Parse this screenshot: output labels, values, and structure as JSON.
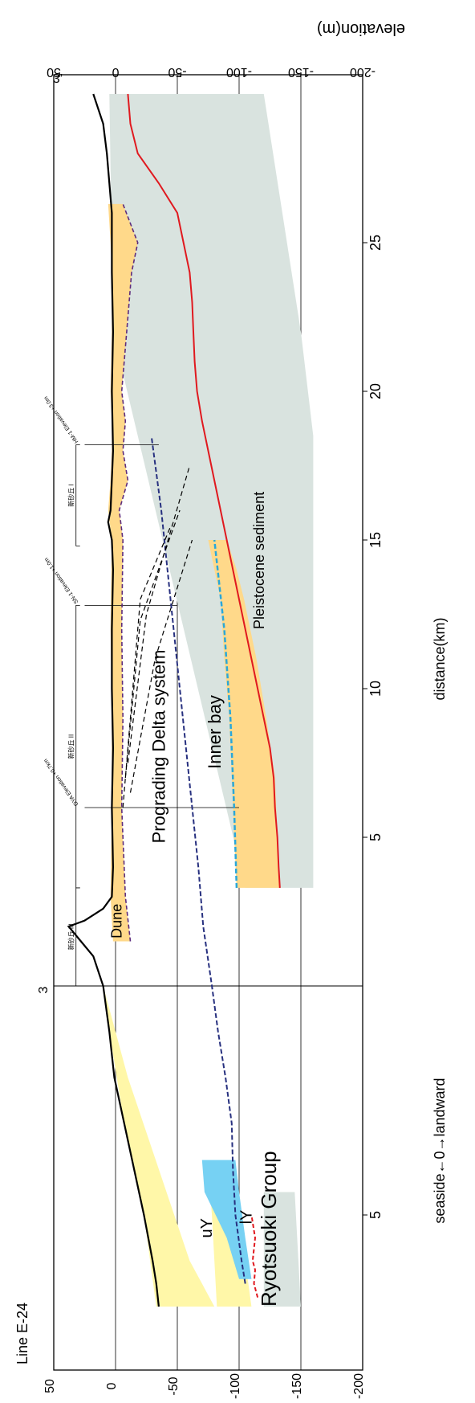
{
  "chart_data": {
    "type": "line",
    "title": "Line E-24",
    "xlabel": "distance(km)",
    "ylabel": "elevation(m)",
    "ylim": [
      -200,
      50
    ],
    "yticks": [
      50,
      0,
      -50,
      -100,
      -150,
      -200
    ],
    "x_axis_center_label": "seaside←0→landward",
    "sea_xticks": [
      5
    ],
    "land_xticks": [
      5,
      10,
      15,
      20,
      25
    ],
    "xlim_sea": [
      -7,
      0
    ],
    "xlim_land": [
      0,
      30
    ],
    "top_marks": [
      {
        "x": -3,
        "label": "3"
      },
      {
        "x": 30,
        "label": "3’"
      }
    ],
    "boreholes": [
      {
        "name": "OYA",
        "x": 6.0,
        "label": "OYA Elevation +0.7km",
        "bottom": -100
      },
      {
        "name": "SN-1",
        "x": 12.8,
        "label": "SN-1 Elevation +1.0m",
        "bottom": -50
      },
      {
        "name": "HM-1",
        "x": 18.2,
        "label": "HM-1 Elevation +3.0m",
        "bottom": -35
      }
    ],
    "brackets": [
      {
        "label": "新砂丘 III",
        "x_start": 0.0,
        "x_end": 3.3
      },
      {
        "label": "新砂丘 II",
        "x_start": 3.3,
        "x_end": 12.8
      },
      {
        "label": "新砂丘 I",
        "x_start": 14.8,
        "x_end": 18.2
      }
    ],
    "series": [
      {
        "name": "surface",
        "x": [
          -7,
          -6.5,
          -6,
          -5,
          -4,
          -3,
          -2,
          -1,
          0,
          1,
          1.5,
          2,
          2.2,
          2.6,
          3,
          4,
          6,
          8,
          10,
          12,
          14,
          15,
          15.6,
          16,
          18,
          20,
          22,
          24,
          26,
          27,
          28,
          29,
          30
        ],
        "y": [
          -35,
          -33,
          -30,
          -23,
          -15,
          -7,
          1,
          5,
          10,
          18,
          28,
          38,
          25,
          10,
          3,
          2,
          3,
          2,
          3,
          3,
          2,
          3,
          6,
          4,
          2,
          3,
          2,
          3,
          3,
          5,
          7,
          10,
          18
        ]
      },
      {
        "name": "base",
        "x": [
          3.3,
          4,
          5,
          6,
          7,
          8,
          9,
          10,
          11,
          12,
          13,
          14,
          15,
          16,
          17,
          18,
          19,
          20,
          21,
          22,
          23,
          24,
          25,
          26,
          27,
          28,
          29,
          30
        ],
        "y": [
          -133,
          -132,
          -131,
          -129,
          -128,
          -125,
          -120,
          -115,
          -110,
          -105,
          -100,
          -95,
          -90,
          -85,
          -80,
          -75,
          -70,
          -66,
          -64,
          -63,
          -62,
          -60,
          -55,
          -50,
          -35,
          -18,
          -12,
          -10
        ]
      },
      {
        "name": "pink dashed",
        "x": [
          -6.8,
          -6.5,
          -6.2,
          -6,
          -5.5,
          -5
        ],
        "y": [
          -115,
          -112,
          -113,
          -111,
          -113,
          -110
        ]
      },
      {
        "name": "IY top",
        "x": [
          -6.5,
          -6,
          -5,
          -4,
          -3,
          -2,
          -1,
          0,
          2,
          4,
          6,
          8,
          10,
          12,
          14,
          16,
          18.5
        ],
        "y": [
          -105,
          -102,
          -97,
          -95,
          -94,
          -89,
          -83,
          -78,
          -71,
          -67,
          -62,
          -57,
          -52,
          -47,
          -42,
          -37,
          -29
        ]
      },
      {
        "name": "inner bay base",
        "x": [
          3.3,
          6,
          9,
          12,
          15
        ],
        "y": [
          -98,
          -96,
          -93,
          -88,
          -80
        ]
      }
    ],
    "annotations": [
      "Line E-24",
      "uY",
      "lY",
      "Ryotsuoki Group",
      "Dune",
      "Prograding Delta system",
      "Inner bay",
      "Pleistocene sediment"
    ],
    "colors": {
      "pleistocene": "#d9e3df",
      "orange": "#ffd98a",
      "yellow": "#fff7a8",
      "blue_fill": "#76d1f3",
      "surface": "#000000",
      "base": "#e0191f",
      "IY": "#27307f",
      "purple": "#5d2c7d",
      "cyan": "#2aa7d9"
    }
  }
}
